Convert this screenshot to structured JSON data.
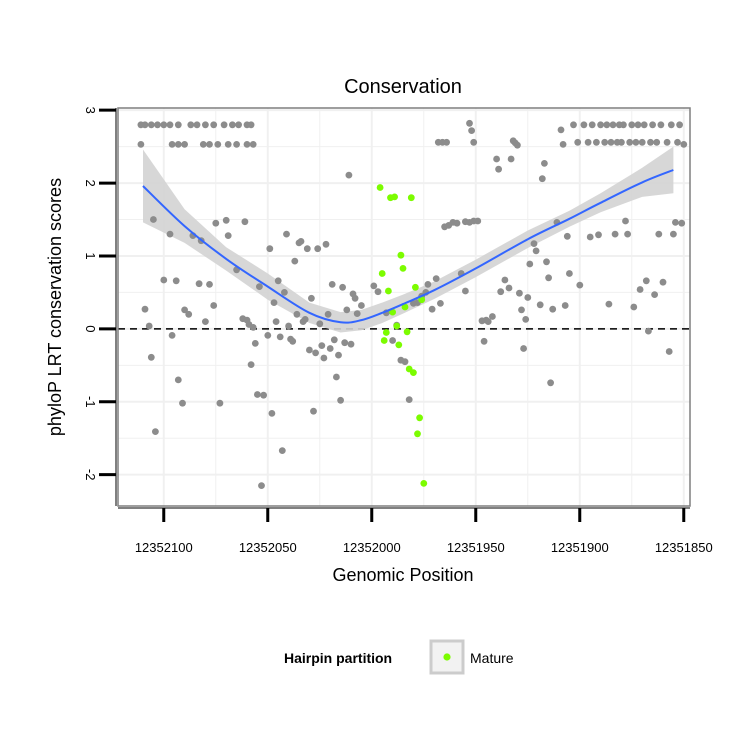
{
  "colors": {
    "background_points": "#8c8c8c",
    "mature_points": "#7cfc00",
    "smooth_line": "#3366ff",
    "ribbon": "#d3d3d3",
    "grid": "#f0f0f0",
    "panel_border": "#7f7f7f",
    "zero_line": "#000000"
  },
  "chart_data": {
    "type": "scatter",
    "title": "Conservation",
    "xlabel": "Genomic Position",
    "ylabel": "phyloP LRT conservation scores",
    "x_reversed": true,
    "xlim": [
      12352122,
      12351847
    ],
    "ylim": [
      -2.43,
      3.03
    ],
    "x_ticks": [
      12352100,
      12352050,
      12352000,
      12351950,
      12351900,
      12351850
    ],
    "x_tick_labels": [
      "12352100",
      "12352050",
      "12352000",
      "12351950",
      "12351900",
      "12351850"
    ],
    "y_ticks": [
      -2,
      -1,
      0,
      1,
      2,
      3
    ],
    "y_tick_labels": [
      "-2",
      "-1",
      "0",
      "1",
      "2",
      "3"
    ],
    "reference_line": {
      "y": 0,
      "style": "dashed"
    },
    "smooth": {
      "method": "loess",
      "x": [
        12352110,
        12352090,
        12352070,
        12352050,
        12352030,
        12352015,
        12352005,
        12351995,
        12351985,
        12351970,
        12351950,
        12351925,
        12351905,
        12351890,
        12351870,
        12351855
      ],
      "y": [
        1.96,
        1.41,
        0.96,
        0.58,
        0.22,
        0.09,
        0.12,
        0.22,
        0.34,
        0.53,
        0.83,
        1.23,
        1.51,
        1.73,
        2.01,
        2.18
      ],
      "lower": [
        1.46,
        1.18,
        0.8,
        0.4,
        0.08,
        -0.05,
        -0.02,
        0.08,
        0.21,
        0.41,
        0.71,
        1.11,
        1.4,
        1.6,
        1.81,
        1.86
      ],
      "upper": [
        2.46,
        1.64,
        1.12,
        0.76,
        0.36,
        0.23,
        0.26,
        0.36,
        0.47,
        0.65,
        0.95,
        1.35,
        1.62,
        1.86,
        2.21,
        2.5
      ]
    },
    "series": [
      {
        "name": "background",
        "legend": false,
        "points": [
          [
            12352111,
            2.8
          ],
          [
            12352109,
            2.8
          ],
          [
            12352106,
            2.8
          ],
          [
            12352103,
            2.8
          ],
          [
            12352100,
            2.8
          ],
          [
            12352097,
            2.8
          ],
          [
            12352093,
            2.8
          ],
          [
            12352087,
            2.8
          ],
          [
            12352084,
            2.8
          ],
          [
            12352080,
            2.8
          ],
          [
            12352076,
            2.8
          ],
          [
            12352071,
            2.8
          ],
          [
            12352067,
            2.8
          ],
          [
            12352064,
            2.8
          ],
          [
            12352060,
            2.8
          ],
          [
            12352058,
            2.8
          ],
          [
            12352111,
            2.53
          ],
          [
            12352096,
            2.53
          ],
          [
            12352093,
            2.53
          ],
          [
            12352090,
            2.53
          ],
          [
            12352081,
            2.53
          ],
          [
            12352078,
            2.53
          ],
          [
            12352074,
            2.53
          ],
          [
            12352069,
            2.53
          ],
          [
            12352065,
            2.53
          ],
          [
            12352060,
            2.53
          ],
          [
            12352057,
            2.53
          ],
          [
            12352109,
            0.27
          ],
          [
            12352107,
            0.04
          ],
          [
            12352106,
            -0.39
          ],
          [
            12352105,
            1.5
          ],
          [
            12352104,
            -1.41
          ],
          [
            12352100,
            0.67
          ],
          [
            12352097,
            1.3
          ],
          [
            12352096,
            -0.09
          ],
          [
            12352094,
            0.66
          ],
          [
            12352093,
            -0.7
          ],
          [
            12352091,
            -1.02
          ],
          [
            12352090,
            0.26
          ],
          [
            12352088,
            0.2
          ],
          [
            12352086,
            1.28
          ],
          [
            12352083,
            0.62
          ],
          [
            12352082,
            1.21
          ],
          [
            12352080,
            0.1
          ],
          [
            12352078,
            0.61
          ],
          [
            12352076,
            0.32
          ],
          [
            12352075,
            1.45
          ],
          [
            12352073,
            -1.02
          ],
          [
            12352070,
            1.49
          ],
          [
            12352069,
            1.28
          ],
          [
            12352065,
            0.81
          ],
          [
            12352062,
            0.14
          ],
          [
            12352061,
            1.47
          ],
          [
            12352060,
            0.12
          ],
          [
            12352059,
            0.06
          ],
          [
            12352058,
            -0.49
          ],
          [
            12352057,
            0.02
          ],
          [
            12352056,
            -0.2
          ],
          [
            12352055,
            -0.9
          ],
          [
            12352054,
            0.58
          ],
          [
            12352053,
            -2.15
          ],
          [
            12352052,
            -0.91
          ],
          [
            12352050,
            -0.09
          ],
          [
            12352049,
            1.1
          ],
          [
            12352048,
            -1.16
          ],
          [
            12352047,
            0.36
          ],
          [
            12352046,
            0.1
          ],
          [
            12352045,
            0.66
          ],
          [
            12352044,
            -0.11
          ],
          [
            12352043,
            -1.67
          ],
          [
            12352042,
            0.5
          ],
          [
            12352041,
            1.3
          ],
          [
            12352040,
            0.04
          ],
          [
            12352039,
            -0.14
          ],
          [
            12352038,
            -0.17
          ],
          [
            12352037,
            0.93
          ],
          [
            12352036,
            0.2
          ],
          [
            12352035,
            1.18
          ],
          [
            12352034,
            1.2
          ],
          [
            12352033,
            0.1
          ],
          [
            12352032,
            0.13
          ],
          [
            12352031,
            1.1
          ],
          [
            12352030,
            -0.29
          ],
          [
            12352029,
            0.42
          ],
          [
            12352028,
            -1.13
          ],
          [
            12352027,
            -0.33
          ],
          [
            12352026,
            1.1
          ],
          [
            12352025,
            0.07
          ],
          [
            12352024,
            -0.23
          ],
          [
            12352023,
            -0.4
          ],
          [
            12352022,
            1.16
          ],
          [
            12352021,
            0.2
          ],
          [
            12352020,
            -0.27
          ],
          [
            12352019,
            0.61
          ],
          [
            12352018,
            -0.15
          ],
          [
            12352017,
            -0.66
          ],
          [
            12352016,
            -0.36
          ],
          [
            12352015,
            -0.98
          ],
          [
            12352014,
            0.57
          ],
          [
            12352013,
            -0.19
          ],
          [
            12352012,
            0.26
          ],
          [
            12352011,
            2.11
          ],
          [
            12352010,
            -0.21
          ],
          [
            12352009,
            0.48
          ],
          [
            12352008,
            0.42
          ],
          [
            12352007,
            0.21
          ],
          [
            12352005,
            0.32
          ],
          [
            12351999,
            0.59
          ],
          [
            12351997,
            0.51
          ],
          [
            12351993,
            0.22
          ],
          [
            12351990,
            -0.16
          ],
          [
            12351988,
            0.05
          ],
          [
            12351986,
            -0.43
          ],
          [
            12351984,
            -0.45
          ],
          [
            12351982,
            -0.97
          ],
          [
            12351980,
            0.35
          ],
          [
            12351978,
            0.36
          ],
          [
            12351976,
            0.45
          ],
          [
            12351974,
            0.5
          ],
          [
            12351973,
            0.61
          ],
          [
            12351971,
            0.27
          ],
          [
            12351969,
            0.69
          ],
          [
            12351967,
            0.35
          ],
          [
            12351968,
            2.56
          ],
          [
            12351966,
            2.56
          ],
          [
            12351964,
            2.56
          ],
          [
            12351965,
            1.4
          ],
          [
            12351963,
            1.42
          ],
          [
            12351961,
            1.46
          ],
          [
            12351959,
            1.45
          ],
          [
            12351957,
            0.76
          ],
          [
            12351955,
            0.52
          ],
          [
            12351953,
            2.82
          ],
          [
            12351952,
            2.72
          ],
          [
            12351951,
            2.56
          ],
          [
            12351955,
            1.47
          ],
          [
            12351953,
            1.46
          ],
          [
            12351951,
            1.48
          ],
          [
            12351949,
            1.48
          ],
          [
            12351947,
            0.11
          ],
          [
            12351946,
            -0.17
          ],
          [
            12351945,
            0.12
          ],
          [
            12351944,
            0.1
          ],
          [
            12351942,
            0.17
          ],
          [
            12351940,
            2.33
          ],
          [
            12351939,
            2.19
          ],
          [
            12351938,
            0.51
          ],
          [
            12351936,
            0.67
          ],
          [
            12351934,
            0.56
          ],
          [
            12351933,
            2.33
          ],
          [
            12351932,
            2.58
          ],
          [
            12351931,
            2.55
          ],
          [
            12351930,
            2.52
          ],
          [
            12351929,
            0.49
          ],
          [
            12351928,
            0.26
          ],
          [
            12351927,
            -0.27
          ],
          [
            12351926,
            0.13
          ],
          [
            12351925,
            0.43
          ],
          [
            12351924,
            0.89
          ],
          [
            12351922,
            1.17
          ],
          [
            12351921,
            1.07
          ],
          [
            12351919,
            0.33
          ],
          [
            12351918,
            2.06
          ],
          [
            12351917,
            2.27
          ],
          [
            12351916,
            0.92
          ],
          [
            12351915,
            0.7
          ],
          [
            12351914,
            -0.74
          ],
          [
            12351913,
            0.27
          ],
          [
            12351911,
            1.46
          ],
          [
            12351909,
            2.73
          ],
          [
            12351908,
            2.53
          ],
          [
            12351907,
            0.32
          ],
          [
            12351906,
            1.27
          ],
          [
            12351905,
            0.76
          ],
          [
            12351903,
            2.8
          ],
          [
            12351901,
            2.56
          ],
          [
            12351900,
            0.6
          ],
          [
            12351898,
            2.8
          ],
          [
            12351896,
            2.56
          ],
          [
            12351895,
            1.26
          ],
          [
            12351894,
            2.8
          ],
          [
            12351892,
            2.56
          ],
          [
            12351891,
            1.29
          ],
          [
            12351890,
            2.8
          ],
          [
            12351888,
            2.56
          ],
          [
            12351887,
            2.8
          ],
          [
            12351886,
            0.34
          ],
          [
            12351885,
            2.56
          ],
          [
            12351884,
            2.8
          ],
          [
            12351883,
            1.3
          ],
          [
            12351882,
            2.56
          ],
          [
            12351881,
            2.8
          ],
          [
            12351880,
            2.56
          ],
          [
            12351879,
            2.8
          ],
          [
            12351878,
            1.48
          ],
          [
            12351877,
            1.3
          ],
          [
            12351876,
            2.56
          ],
          [
            12351875,
            2.8
          ],
          [
            12351874,
            0.3
          ],
          [
            12351873,
            2.56
          ],
          [
            12351872,
            2.8
          ],
          [
            12351871,
            0.54
          ],
          [
            12351870,
            2.56
          ],
          [
            12351869,
            2.8
          ],
          [
            12351868,
            0.66
          ],
          [
            12351867,
            -0.03
          ],
          [
            12351866,
            2.56
          ],
          [
            12351865,
            2.8
          ],
          [
            12351864,
            0.47
          ],
          [
            12351863,
            2.56
          ],
          [
            12351862,
            1.3
          ],
          [
            12351861,
            2.8
          ],
          [
            12351860,
            0.64
          ],
          [
            12351858,
            2.56
          ],
          [
            12351857,
            -0.31
          ],
          [
            12351856,
            2.8
          ],
          [
            12351855,
            1.3
          ],
          [
            12351854,
            1.46
          ],
          [
            12351853,
            2.56
          ],
          [
            12351852,
            2.8
          ],
          [
            12351851,
            1.45
          ],
          [
            12351850,
            2.53
          ]
        ]
      },
      {
        "name": "Mature",
        "legend": true,
        "points": [
          [
            12351996,
            1.94
          ],
          [
            12351995,
            0.76
          ],
          [
            12351994,
            -0.16
          ],
          [
            12351993,
            -0.05
          ],
          [
            12351992,
            0.52
          ],
          [
            12351991,
            1.8
          ],
          [
            12351990,
            0.23
          ],
          [
            12351989,
            1.81
          ],
          [
            12351988,
            0.04
          ],
          [
            12351987,
            -0.22
          ],
          [
            12351986,
            1.01
          ],
          [
            12351985,
            0.83
          ],
          [
            12351984,
            0.3
          ],
          [
            12351983,
            -0.04
          ],
          [
            12351982,
            -0.55
          ],
          [
            12351981,
            1.8
          ],
          [
            12351980,
            -0.6
          ],
          [
            12351979,
            0.57
          ],
          [
            12351978,
            -1.44
          ],
          [
            12351977,
            -1.22
          ],
          [
            12351976,
            0.4
          ],
          [
            12351975,
            -2.12
          ]
        ]
      }
    ],
    "legend": {
      "title": "Hairpin partition",
      "entries": [
        "Mature"
      ],
      "placement": "bottom"
    }
  }
}
